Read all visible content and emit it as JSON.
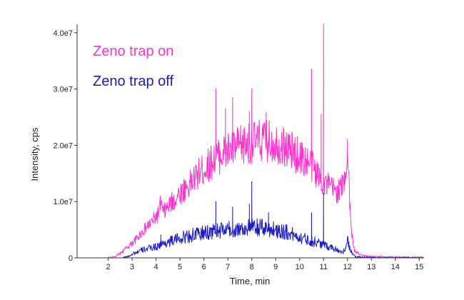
{
  "chart_data": {
    "type": "line",
    "title": "",
    "xlabel": "Time, min",
    "ylabel": "Intensity, cps",
    "xlim": [
      0.7,
      15.2
    ],
    "ylim": [
      0,
      41500000
    ],
    "x_ticks": [
      {
        "value": 2,
        "label": "2"
      },
      {
        "value": 3,
        "label": "3"
      },
      {
        "value": 4,
        "label": "4"
      },
      {
        "value": 5,
        "label": "5"
      },
      {
        "value": 6,
        "label": "6"
      },
      {
        "value": 7,
        "label": "7"
      },
      {
        "value": 8,
        "label": "8"
      },
      {
        "value": 9,
        "label": "9"
      },
      {
        "value": 10,
        "label": "10"
      },
      {
        "value": 11,
        "label": "11"
      },
      {
        "value": 12,
        "label": "12"
      },
      {
        "value": 13,
        "label": "13"
      },
      {
        "value": 14,
        "label": "14"
      },
      {
        "value": 15,
        "label": "15"
      }
    ],
    "y_ticks": [
      {
        "value": 0,
        "label": "0"
      },
      {
        "value": 10000000,
        "label": "1.0e7"
      },
      {
        "value": 20000000,
        "label": "2.0e7"
      },
      {
        "value": 30000000,
        "label": "3.0e7"
      },
      {
        "value": 40000000,
        "label": "4.0e7"
      }
    ],
    "grid": false,
    "legend_position": "top-left",
    "series": [
      {
        "name": "Zeno trap on",
        "color": "#ff33cc",
        "points": [
          [
            0.7,
            0
          ],
          [
            2.0,
            0
          ],
          [
            2.3,
            200000
          ],
          [
            2.5,
            800000
          ],
          [
            2.7,
            1500000
          ],
          [
            3.0,
            2600000
          ],
          [
            3.2,
            3500000
          ],
          [
            3.5,
            5000000
          ],
          [
            3.8,
            6300000
          ],
          [
            4.1,
            7800000
          ],
          [
            4.2,
            9800000
          ],
          [
            4.3,
            8000000
          ],
          [
            4.6,
            9500000
          ],
          [
            5.0,
            11500000
          ],
          [
            5.4,
            13000000
          ],
          [
            5.8,
            15000000
          ],
          [
            6.2,
            16500000
          ],
          [
            6.5,
            17800000
          ],
          [
            7.0,
            19000000
          ],
          [
            7.5,
            19800000
          ],
          [
            8.0,
            20500000
          ],
          [
            8.5,
            20800000
          ],
          [
            9.0,
            20500000
          ],
          [
            9.5,
            19500000
          ],
          [
            10.0,
            18000000
          ],
          [
            10.5,
            16500000
          ],
          [
            10.8,
            14500000
          ],
          [
            11.0,
            13500000
          ],
          [
            11.3,
            12500000
          ],
          [
            11.6,
            11800000
          ],
          [
            11.85,
            13000000
          ],
          [
            11.95,
            16500000
          ],
          [
            12.0,
            18500000
          ],
          [
            12.05,
            15000000
          ],
          [
            12.15,
            5000000
          ],
          [
            12.3,
            1200000
          ],
          [
            12.6,
            400000
          ],
          [
            13.0,
            200000
          ],
          [
            14.0,
            150000
          ],
          [
            15.2,
            100000
          ]
        ],
        "spikes": [
          [
            6.5,
            30000000
          ],
          [
            6.9,
            26500000
          ],
          [
            7.2,
            28500000
          ],
          [
            7.9,
            26000000
          ],
          [
            8.0,
            30000000
          ],
          [
            8.6,
            25800000
          ],
          [
            10.5,
            33500000
          ],
          [
            10.9,
            25500000
          ],
          [
            11.0,
            41500000
          ],
          [
            12.0,
            21000000
          ]
        ]
      },
      {
        "name": "Zeno trap off",
        "color": "#1a1acc",
        "points": [
          [
            0.7,
            0
          ],
          [
            2.6,
            0
          ],
          [
            2.8,
            200000
          ],
          [
            3.0,
            700000
          ],
          [
            3.5,
            1500000
          ],
          [
            4.0,
            2000000
          ],
          [
            4.5,
            2800000
          ],
          [
            5.0,
            3500000
          ],
          [
            5.5,
            4000000
          ],
          [
            6.0,
            4400000
          ],
          [
            6.5,
            4800000
          ],
          [
            7.0,
            5000000
          ],
          [
            7.5,
            5200000
          ],
          [
            8.0,
            5400000
          ],
          [
            8.5,
            5300000
          ],
          [
            9.0,
            5000000
          ],
          [
            9.5,
            4500000
          ],
          [
            10.0,
            3700000
          ],
          [
            10.5,
            3000000
          ],
          [
            11.0,
            2400000
          ],
          [
            11.5,
            1600000
          ],
          [
            11.8,
            1000000
          ],
          [
            11.95,
            1800000
          ],
          [
            12.0,
            3200000
          ],
          [
            12.1,
            1500000
          ],
          [
            12.3,
            300000
          ],
          [
            12.6,
            50000
          ],
          [
            15.2,
            0
          ]
        ],
        "spikes": [
          [
            4.2,
            4000000
          ],
          [
            6.5,
            10000000
          ],
          [
            7.2,
            9000000
          ],
          [
            7.9,
            9500000
          ],
          [
            8.0,
            13500000
          ],
          [
            8.7,
            8000000
          ],
          [
            10.5,
            8000000
          ],
          [
            11.0,
            11500000
          ]
        ]
      }
    ]
  }
}
